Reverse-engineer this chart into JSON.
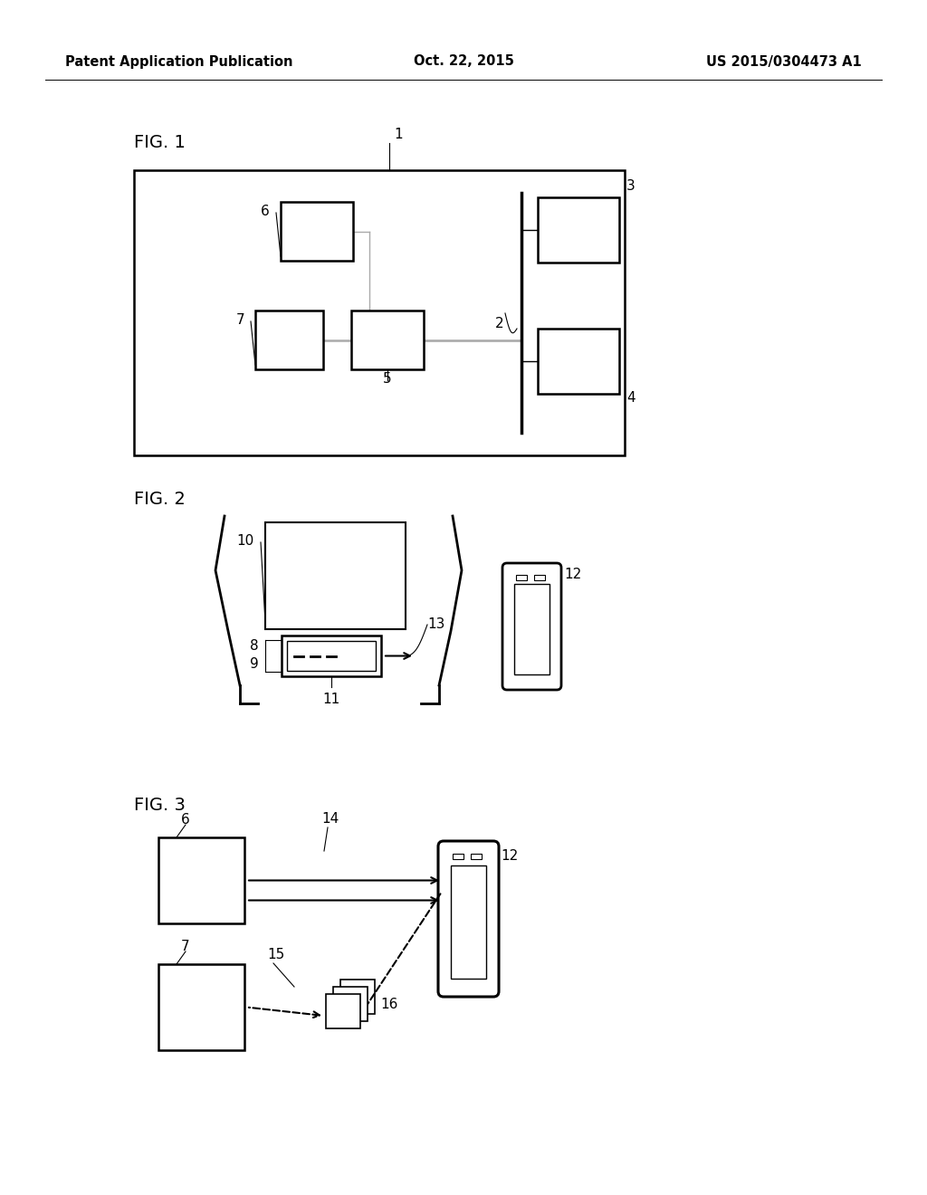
{
  "header_left": "Patent Application Publication",
  "header_center": "Oct. 22, 2015",
  "header_right": "US 2015/0304473 A1",
  "bg_color": "#ffffff",
  "line_color": "#000000",
  "gray_line": "#aaaaaa"
}
